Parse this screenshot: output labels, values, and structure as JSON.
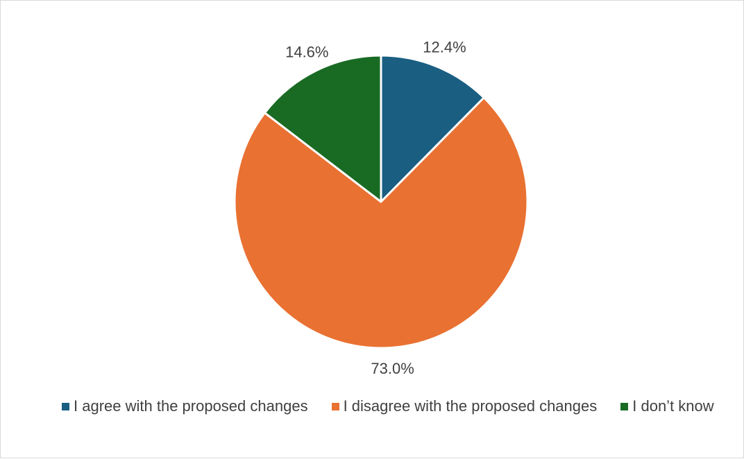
{
  "chart_data": {
    "type": "pie",
    "title": "",
    "slices": [
      {
        "label": "I agree with the proposed changes",
        "value": 12.4,
        "value_label": "12.4%",
        "color": "#1a5e82"
      },
      {
        "label": "I disagree with the proposed changes",
        "value": 73.0,
        "value_label": "73.0%",
        "color": "#e97132"
      },
      {
        "label": "I don’t know",
        "value": 14.6,
        "value_label": "14.6%",
        "color": "#196b24"
      }
    ],
    "start_angle": "12 o'clock",
    "direction": "clockwise",
    "legend": {
      "placement": "bottom"
    },
    "slice_border_color": "#ffffff"
  }
}
